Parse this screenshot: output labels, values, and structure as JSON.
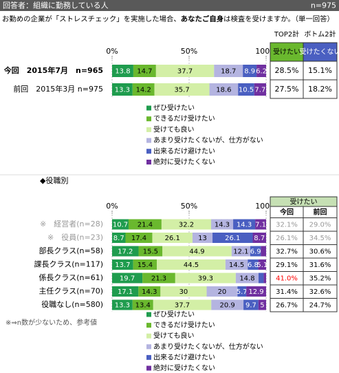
{
  "header": {
    "respondents": "回答者：組織に勤務している人",
    "n": "n=975"
  },
  "question": {
    "parts": [
      "お勤めの企業が「ストレスチェック」を実施した場合、",
      "あなたご自身",
      "は検査を受けますか。（単一回答）"
    ]
  },
  "chart_data": [
    {
      "type": "stacked_bar_h",
      "categories": [
        "今回　2015年7月　n=965",
        "前回　2015年3月 n=975"
      ],
      "bold": [
        0
      ],
      "xlim": [
        0,
        100
      ],
      "xticks": [
        {
          "value": 0,
          "label": "0%"
        },
        {
          "value": 50,
          "label": "50%"
        },
        {
          "value": 100,
          "label": "100%"
        }
      ],
      "grid": true,
      "series": [
        {
          "name": "ぜひ受けたい",
          "color": "#1f9c4e",
          "label_color": "#ffffff",
          "values": [
            13.8,
            13.3
          ]
        },
        {
          "name": "できるだけ受けたい",
          "color": "#6ab82e",
          "label_color": "#000000",
          "values": [
            14.7,
            14.2
          ]
        },
        {
          "name": "受けても良い",
          "color": "#d3efa6",
          "label_color": "#000000",
          "values": [
            37.7,
            35.7
          ]
        },
        {
          "name": "あまり受けたくないが、仕方がない",
          "color": "#b4b4e0",
          "label_color": "#000000",
          "values": [
            18.7,
            18.6
          ]
        },
        {
          "name": "出来るだけ避けたい",
          "color": "#4a5fc1",
          "label_color": "#ffffff",
          "values": [
            8.9,
            10.5
          ]
        },
        {
          "name": "絶対に受けたくない",
          "color": "#7030a0",
          "label_color": "#ffffff",
          "values": [
            6.2,
            7.7
          ]
        }
      ]
    },
    {
      "type": "stacked_bar_h",
      "categories": [
        "※　経営者(n=28)",
        "※　役員(n=23)",
        "部長クラス(n=58)",
        "課長クラス(n=117)",
        "係長クラス(n=61)",
        "主任クラス(n=70)",
        "役職なし(n=580)"
      ],
      "muted": [
        0,
        1
      ],
      "xlim": [
        0,
        100
      ],
      "xticks": [
        {
          "value": 0,
          "label": "0%"
        },
        {
          "value": 50,
          "label": "50%"
        },
        {
          "value": 100,
          "label": "100%"
        }
      ],
      "grid": true,
      "series": [
        {
          "name": "ぜひ受けたい",
          "color": "#1f9c4e",
          "label_color": "#ffffff",
          "values": [
            10.7,
            8.7,
            17.2,
            13.7,
            19.7,
            17.1,
            13.3
          ]
        },
        {
          "name": "できるだけ受けたい",
          "color": "#6ab82e",
          "label_color": "#000000",
          "values": [
            21.4,
            17.4,
            15.5,
            15.4,
            21.3,
            14.3,
            13.4
          ]
        },
        {
          "name": "受けても良い",
          "color": "#d3efa6",
          "label_color": "#000000",
          "values": [
            32.2,
            26.1,
            44.9,
            44.5,
            39.3,
            30.0,
            37.7
          ]
        },
        {
          "name": "あまり受けたくないが、仕方がない",
          "color": "#b4b4e0",
          "label_color": "#000000",
          "values": [
            14.3,
            13.0,
            12.1,
            14.5,
            14.8,
            20.0,
            20.9
          ]
        },
        {
          "name": "出来るだけ避けたい",
          "color": "#4a5fc1",
          "label_color": "#ffffff",
          "values": [
            14.3,
            26.1,
            6.9,
            6.8,
            3.3,
            5.7,
            9.7
          ]
        },
        {
          "name": "絶対に受けたくない",
          "color": "#7030a0",
          "label_color": "#ffffff",
          "values": [
            7.1,
            8.7,
            3.4,
            5.1,
            1.6,
            12.9,
            5.0
          ]
        }
      ]
    }
  ],
  "summary_table": {
    "columns": [
      "TOP2計",
      "ボトム2計"
    ],
    "subheaders": [
      "受けたい",
      "受けたくない"
    ],
    "subheader_colors": [
      "#6ab82e",
      "#4a5fc1"
    ],
    "subheader_text_colors": [
      "#000000",
      "#ffffff"
    ],
    "rows": [
      [
        "28.5%",
        "15.1%"
      ],
      [
        "27.5%",
        "18.2%"
      ]
    ]
  },
  "section_label": "◆役職別",
  "role_table": {
    "title": "受けたい",
    "title_color": "#c6e0b4",
    "columns": [
      "今回",
      "前回"
    ],
    "rows": [
      [
        "32.1%",
        "29.0%"
      ],
      [
        "26.1%",
        "34.5%"
      ],
      [
        "32.7%",
        "30.6%"
      ],
      [
        "29.1%",
        "31.6%"
      ],
      [
        "41.0%",
        "35.2%"
      ],
      [
        "31.4%",
        "32.6%"
      ],
      [
        "26.7%",
        "24.7%"
      ]
    ],
    "muted": [
      0,
      1
    ],
    "highlight": [
      [
        4,
        0
      ]
    ],
    "highlight_color": "#ff0000"
  },
  "note": "※⇒n数が少ないため、参考値"
}
